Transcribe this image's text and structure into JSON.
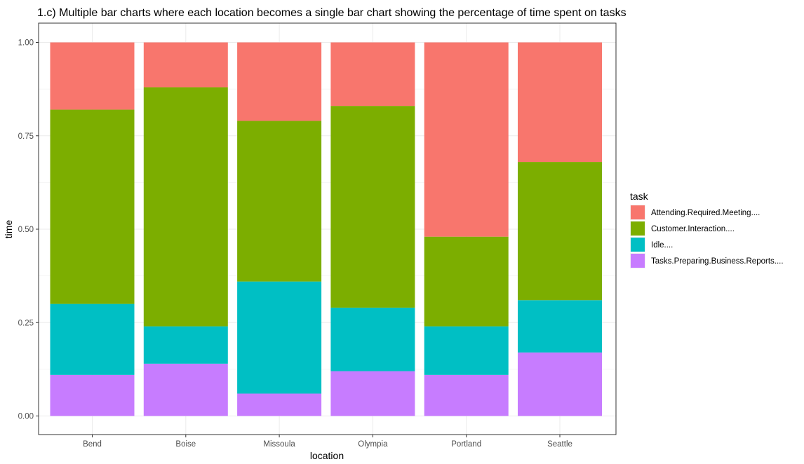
{
  "chart_data": {
    "type": "bar",
    "stacked": true,
    "title": "1.c) Multiple bar charts where each location becomes a single bar chart showing the percentage of time spent on tasks",
    "xlabel": "location",
    "ylabel": "time",
    "ylim": [
      0,
      1
    ],
    "yticks": [
      "0.00",
      "0.25",
      "0.50",
      "0.75",
      "1.00"
    ],
    "grid": true,
    "legend_title": "task",
    "legend_position": "right",
    "categories": [
      "Bend",
      "Boise",
      "Missoula",
      "Olympia",
      "Portland",
      "Seattle"
    ],
    "series": [
      {
        "name": "Attending.Required.Meeting....",
        "color": "#F8766D",
        "values": [
          0.18,
          0.12,
          0.21,
          0.17,
          0.52,
          0.32
        ]
      },
      {
        "name": "Customer.Interaction....",
        "color": "#7CAE00",
        "values": [
          0.52,
          0.64,
          0.43,
          0.54,
          0.24,
          0.37
        ]
      },
      {
        "name": "Idle....",
        "color": "#00BFC4",
        "values": [
          0.19,
          0.1,
          0.3,
          0.17,
          0.13,
          0.14
        ]
      },
      {
        "name": "Tasks.Preparing.Business.Reports....",
        "color": "#C77CFF",
        "values": [
          0.11,
          0.14,
          0.06,
          0.12,
          0.11,
          0.17
        ]
      }
    ]
  }
}
